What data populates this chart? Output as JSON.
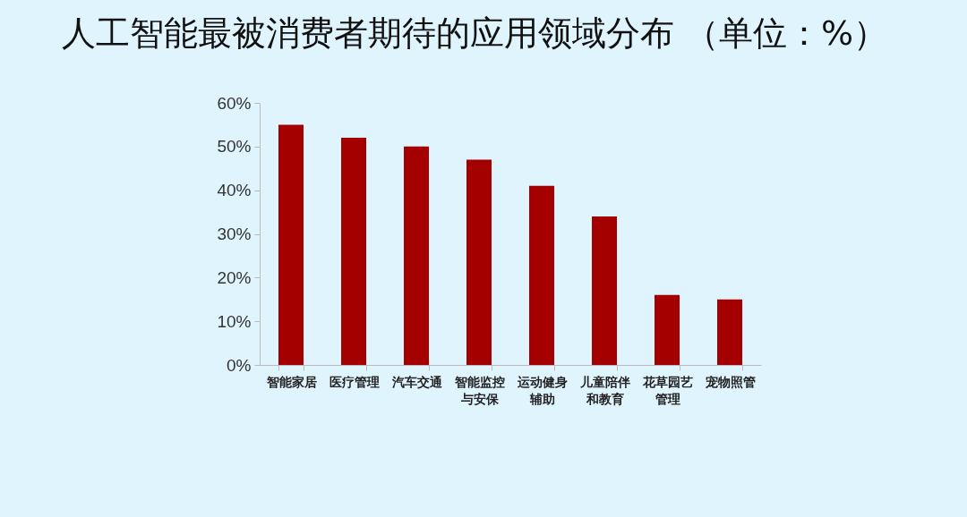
{
  "chart_data": {
    "type": "bar",
    "title": "人工智能最被消费者期待的应用领域分布 （单位：%）",
    "categories": [
      "智能家居",
      "医疗管理",
      "汽车交通",
      "智能监控与安保",
      "运动健身辅助",
      "儿童陪伴和教育",
      "花草园艺管理",
      "宠物照管"
    ],
    "values": [
      55,
      52,
      50,
      47,
      41,
      34,
      16,
      15
    ],
    "color": "#a50000",
    "ylim": [
      0,
      60
    ],
    "yticks": [
      {
        "value": 0,
        "label": "0%"
      },
      {
        "value": 10,
        "label": "10%"
      },
      {
        "value": 20,
        "label": "20%"
      },
      {
        "value": 30,
        "label": "30%"
      },
      {
        "value": 40,
        "label": "40%"
      },
      {
        "value": 50,
        "label": "50%"
      },
      {
        "value": 60,
        "label": "60%"
      }
    ],
    "grid": false
  }
}
